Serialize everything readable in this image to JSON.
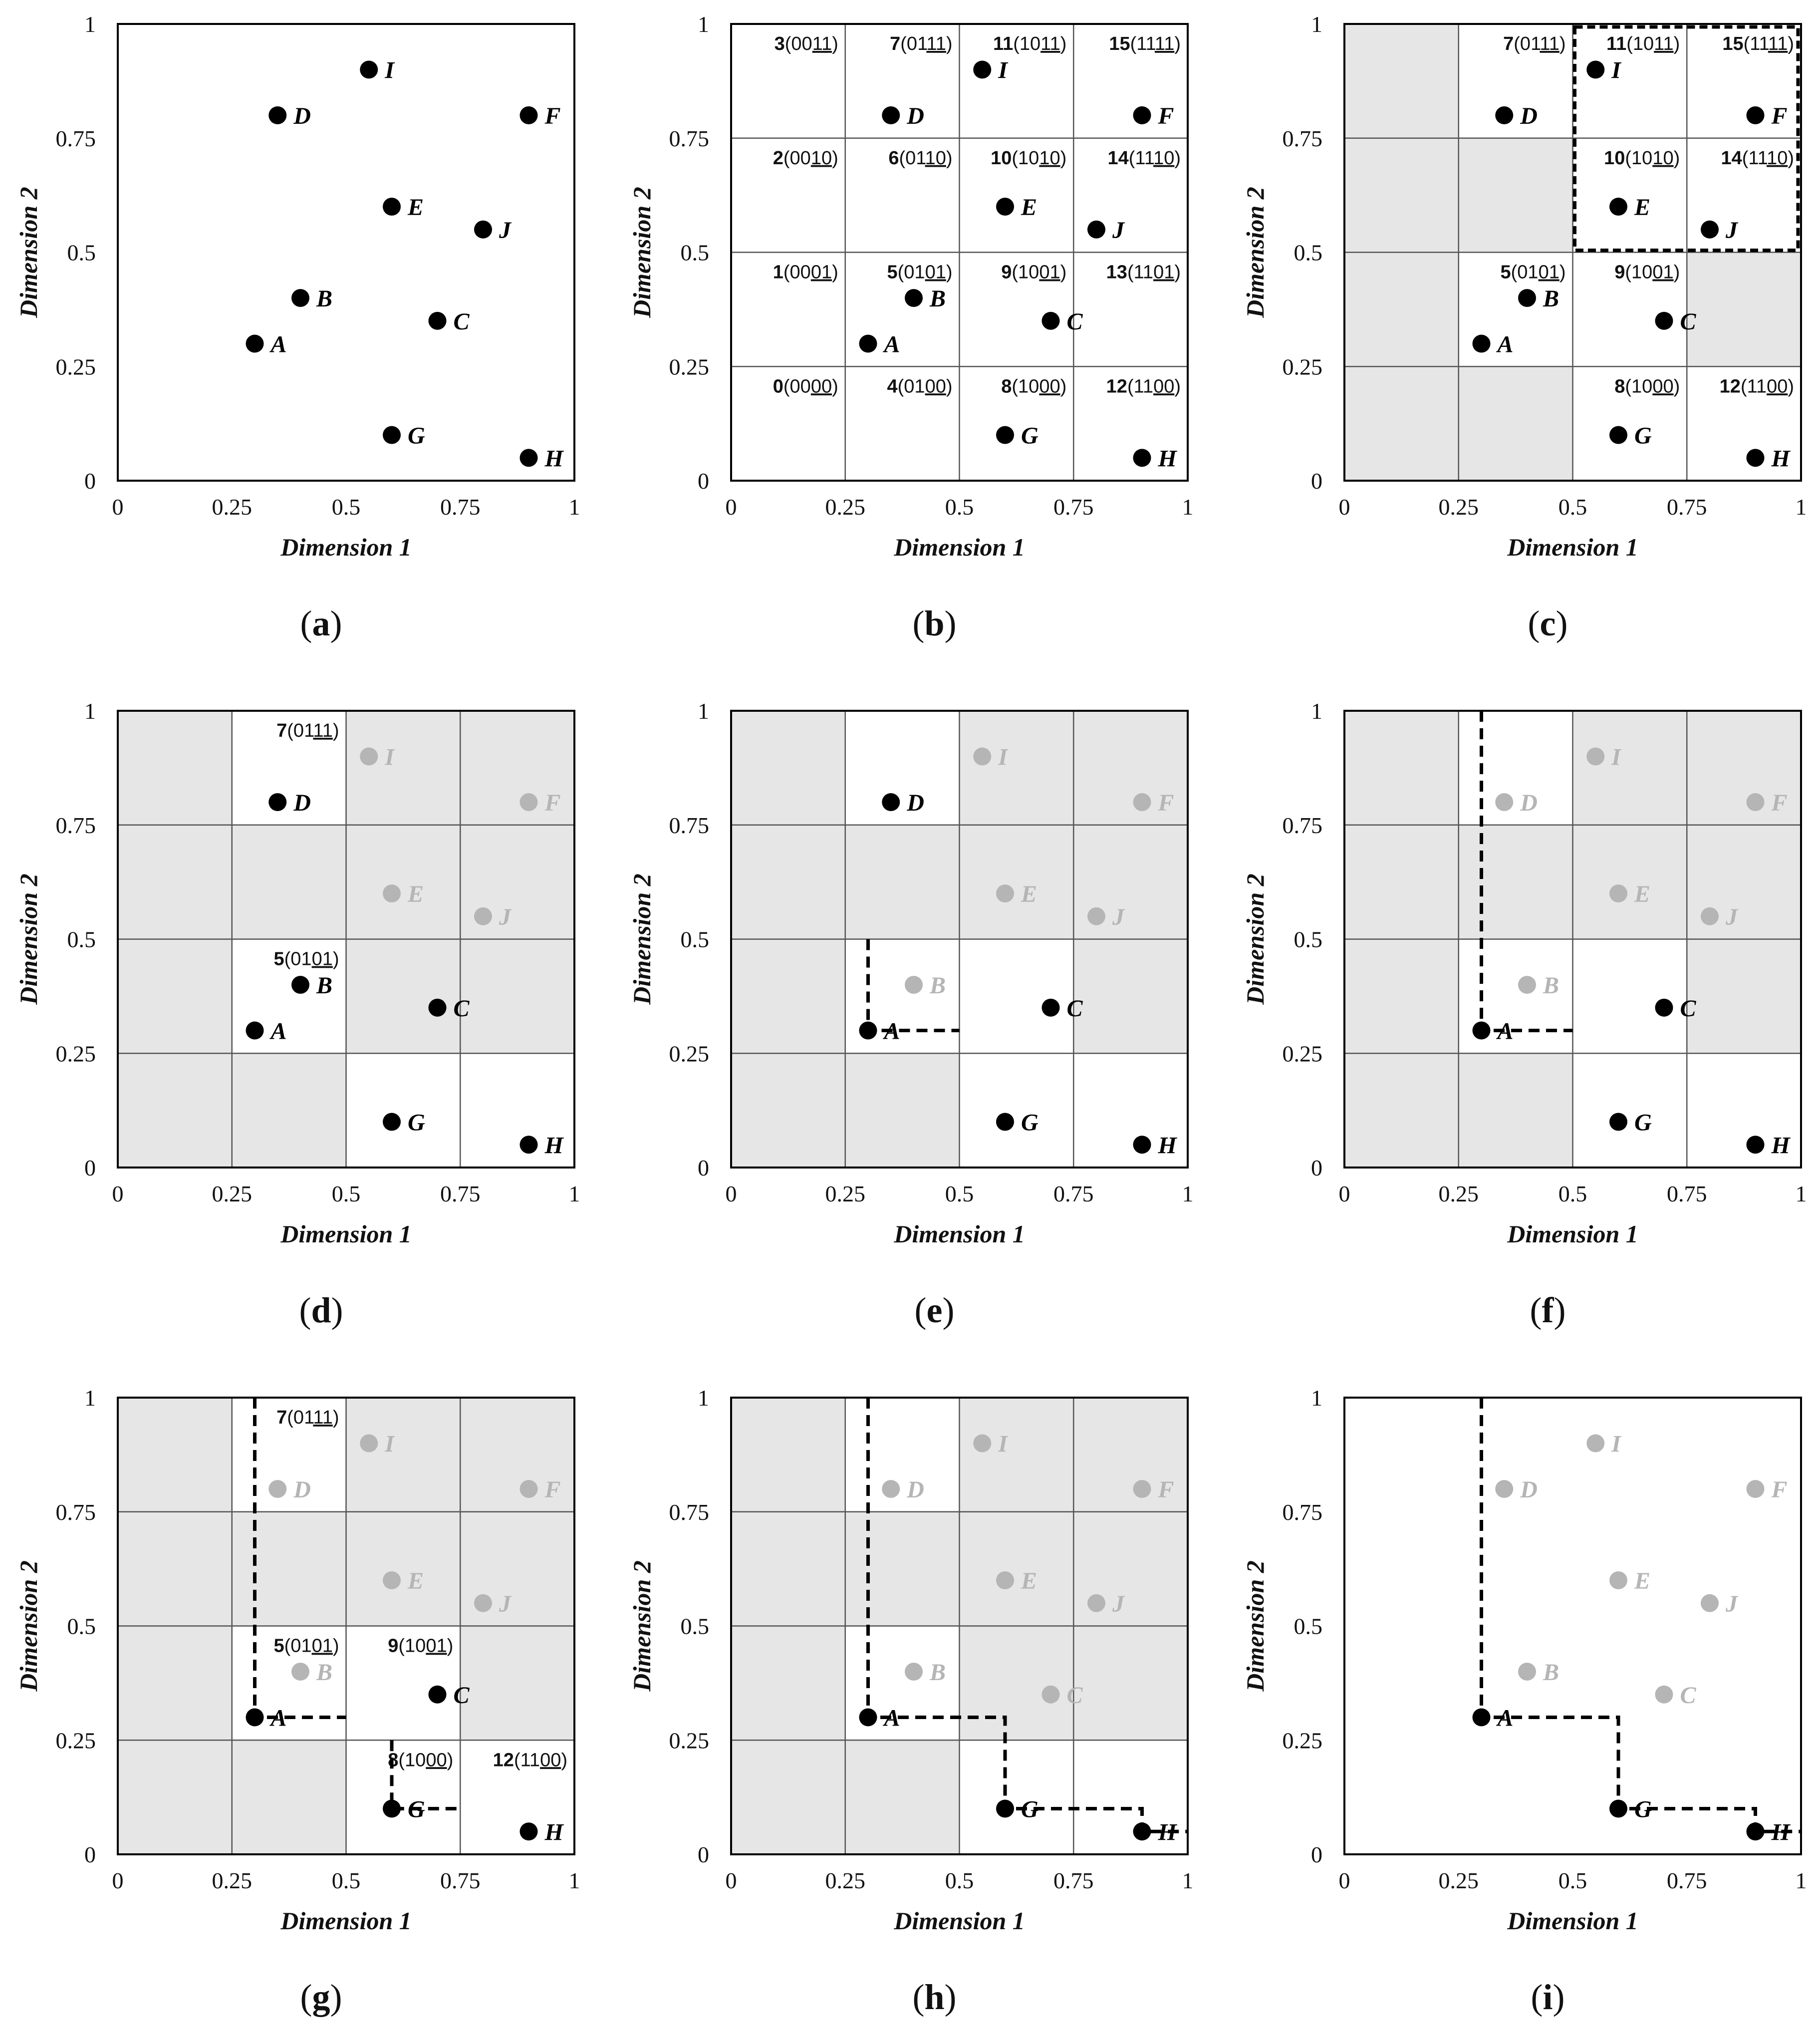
{
  "axes": {
    "xlabel": "Dimension 1",
    "ylabel": "Dimension 2",
    "ticks": [
      {
        "v": 0,
        "label": "0"
      },
      {
        "v": 0.25,
        "label": "0.25"
      },
      {
        "v": 0.5,
        "label": "0.5"
      },
      {
        "v": 0.75,
        "label": "0.75"
      },
      {
        "v": 1,
        "label": "1"
      }
    ]
  },
  "points": [
    {
      "name": "A",
      "x": 0.3,
      "y": 0.3
    },
    {
      "name": "B",
      "x": 0.4,
      "y": 0.4
    },
    {
      "name": "C",
      "x": 0.7,
      "y": 0.35
    },
    {
      "name": "D",
      "x": 0.35,
      "y": 0.8
    },
    {
      "name": "E",
      "x": 0.6,
      "y": 0.6
    },
    {
      "name": "F",
      "x": 0.9,
      "y": 0.8
    },
    {
      "name": "G",
      "x": 0.6,
      "y": 0.1
    },
    {
      "name": "H",
      "x": 0.9,
      "y": 0.05
    },
    {
      "name": "I",
      "x": 0.55,
      "y": 0.9
    },
    {
      "name": "J",
      "x": 0.8,
      "y": 0.55
    }
  ],
  "cells": [
    {
      "id": 0,
      "col": 0,
      "row": 0,
      "num": "0",
      "pre": "00",
      "suf": "00"
    },
    {
      "id": 1,
      "col": 0,
      "row": 1,
      "num": "1",
      "pre": "00",
      "suf": "01"
    },
    {
      "id": 2,
      "col": 0,
      "row": 2,
      "num": "2",
      "pre": "00",
      "suf": "10"
    },
    {
      "id": 3,
      "col": 0,
      "row": 3,
      "num": "3",
      "pre": "00",
      "suf": "11"
    },
    {
      "id": 4,
      "col": 1,
      "row": 0,
      "num": "4",
      "pre": "01",
      "suf": "00"
    },
    {
      "id": 5,
      "col": 1,
      "row": 1,
      "num": "5",
      "pre": "01",
      "suf": "01"
    },
    {
      "id": 6,
      "col": 1,
      "row": 2,
      "num": "6",
      "pre": "01",
      "suf": "10"
    },
    {
      "id": 7,
      "col": 1,
      "row": 3,
      "num": "7",
      "pre": "01",
      "suf": "11"
    },
    {
      "id": 8,
      "col": 2,
      "row": 0,
      "num": "8",
      "pre": "10",
      "suf": "00"
    },
    {
      "id": 9,
      "col": 2,
      "row": 1,
      "num": "9",
      "pre": "10",
      "suf": "01"
    },
    {
      "id": 10,
      "col": 2,
      "row": 2,
      "num": "10",
      "pre": "10",
      "suf": "10"
    },
    {
      "id": 11,
      "col": 2,
      "row": 3,
      "num": "11",
      "pre": "10",
      "suf": "11"
    },
    {
      "id": 12,
      "col": 3,
      "row": 0,
      "num": "12",
      "pre": "11",
      "suf": "00"
    },
    {
      "id": 13,
      "col": 3,
      "row": 1,
      "num": "13",
      "pre": "11",
      "suf": "01"
    },
    {
      "id": 14,
      "col": 3,
      "row": 2,
      "num": "14",
      "pre": "11",
      "suf": "10"
    },
    {
      "id": 15,
      "col": 3,
      "row": 3,
      "num": "15",
      "pre": "11",
      "suf": "11"
    }
  ],
  "panels": [
    {
      "id": "a",
      "caption": "a",
      "grid": false,
      "shaded": [],
      "labels": [],
      "gray": [],
      "path": [],
      "highlight": false
    },
    {
      "id": "b",
      "caption": "b",
      "grid": true,
      "shaded": [],
      "labels": [
        0,
        1,
        2,
        3,
        4,
        5,
        6,
        7,
        8,
        9,
        10,
        11,
        12,
        13,
        14,
        15
      ],
      "gray": [],
      "path": [],
      "highlight": false
    },
    {
      "id": "c",
      "caption": "c",
      "grid": true,
      "shaded": [
        0,
        1,
        2,
        3,
        4,
        6,
        13
      ],
      "labels": [
        5,
        7,
        8,
        9,
        10,
        11,
        12,
        14,
        15
      ],
      "gray": [],
      "path": [],
      "highlight": true
    },
    {
      "id": "d",
      "caption": "d",
      "grid": true,
      "shaded": [
        0,
        1,
        2,
        3,
        4,
        6,
        9,
        10,
        11,
        13,
        14,
        15
      ],
      "labels": [
        5,
        7
      ],
      "gray": [
        "E",
        "F",
        "I",
        "J"
      ],
      "path": [],
      "highlight": false
    },
    {
      "id": "e",
      "caption": "e",
      "grid": true,
      "shaded": [
        0,
        1,
        2,
        3,
        4,
        6,
        10,
        11,
        13,
        14,
        15
      ],
      "labels": [],
      "gray": [
        "B",
        "E",
        "F",
        "I",
        "J"
      ],
      "path": [
        [
          0.3,
          0.5
        ],
        [
          0.3,
          0.3
        ],
        [
          0.5,
          0.3
        ]
      ],
      "highlight": false
    },
    {
      "id": "f",
      "caption": "f",
      "grid": true,
      "shaded": [
        0,
        1,
        2,
        3,
        4,
        6,
        10,
        11,
        13,
        14,
        15
      ],
      "labels": [],
      "gray": [
        "B",
        "D",
        "E",
        "F",
        "I",
        "J"
      ],
      "path": [
        [
          0.3,
          1
        ],
        [
          0.3,
          0.3
        ],
        [
          0.5,
          0.3
        ]
      ],
      "highlight": false
    },
    {
      "id": "g",
      "caption": "g",
      "grid": true,
      "shaded": [
        0,
        1,
        2,
        3,
        4,
        6,
        10,
        11,
        13,
        14,
        15
      ],
      "labels": [
        5,
        7,
        8,
        9,
        12
      ],
      "gray": [
        "B",
        "D",
        "E",
        "F",
        "I",
        "J"
      ],
      "path": [
        [
          0.3,
          1
        ],
        [
          0.3,
          0.3
        ],
        [
          0.5,
          0.3
        ]
      ],
      "path2": [
        [
          0.6,
          0.25
        ],
        [
          0.6,
          0.1
        ],
        [
          0.75,
          0.1
        ]
      ],
      "highlight": false
    },
    {
      "id": "h",
      "caption": "h",
      "grid": true,
      "shaded": [
        0,
        1,
        2,
        3,
        4,
        6,
        9,
        10,
        11,
        13,
        14,
        15
      ],
      "labels": [],
      "gray": [
        "B",
        "C",
        "D",
        "E",
        "F",
        "I",
        "J"
      ],
      "path": [
        [
          0.3,
          1
        ],
        [
          0.3,
          0.3
        ],
        [
          0.6,
          0.3
        ],
        [
          0.6,
          0.1
        ],
        [
          0.9,
          0.1
        ],
        [
          0.9,
          0.05
        ],
        [
          1,
          0.05
        ]
      ],
      "highlight": false
    },
    {
      "id": "i",
      "caption": "i",
      "grid": false,
      "shaded": [],
      "labels": [],
      "gray": [
        "B",
        "C",
        "D",
        "E",
        "F",
        "I",
        "J"
      ],
      "path": [
        [
          0.3,
          1
        ],
        [
          0.3,
          0.3
        ],
        [
          0.6,
          0.3
        ],
        [
          0.6,
          0.1
        ],
        [
          0.9,
          0.1
        ],
        [
          0.9,
          0.05
        ],
        [
          1,
          0.05
        ]
      ],
      "highlight": false
    }
  ],
  "colors": {
    "shade": "#e6e6e6",
    "black": "#000000",
    "gray": "#b5b5b5",
    "grid": "#555555"
  }
}
